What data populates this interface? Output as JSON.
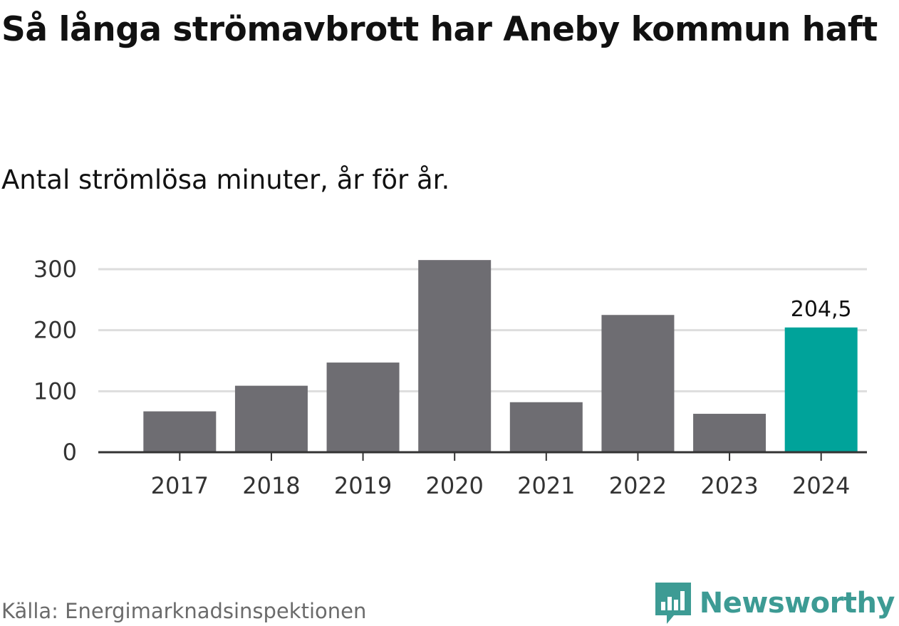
{
  "page": {
    "title": "Så långa strömavbrott har Aneby kommun haft",
    "subtitle": "Antal strömlösa minuter, år för år.",
    "source": "Källa: Energimarknadsinspektionen",
    "brand": "Newsworthy",
    "brand_icon": "bar-chart-logo-icon"
  },
  "colors": {
    "bar": "#6e6d72",
    "highlight": "#00a39a",
    "grid": "#dddddd",
    "axis": "#333333",
    "brand": "#3d9b94"
  },
  "chart_data": {
    "type": "bar",
    "categories": [
      "2017",
      "2018",
      "2019",
      "2020",
      "2021",
      "2022",
      "2023",
      "2024"
    ],
    "values": [
      67,
      109,
      147,
      315,
      82,
      225,
      63,
      204.5
    ],
    "highlight_index": 7,
    "data_labels": [
      {
        "index": 7,
        "text": "204,5"
      }
    ],
    "title": "Så långa strömavbrott har Aneby kommun haft",
    "xlabel": "",
    "ylabel": "",
    "ylim": [
      0,
      330
    ],
    "yticks": [
      0,
      100,
      200,
      300
    ],
    "grid": true,
    "legend": "none"
  }
}
